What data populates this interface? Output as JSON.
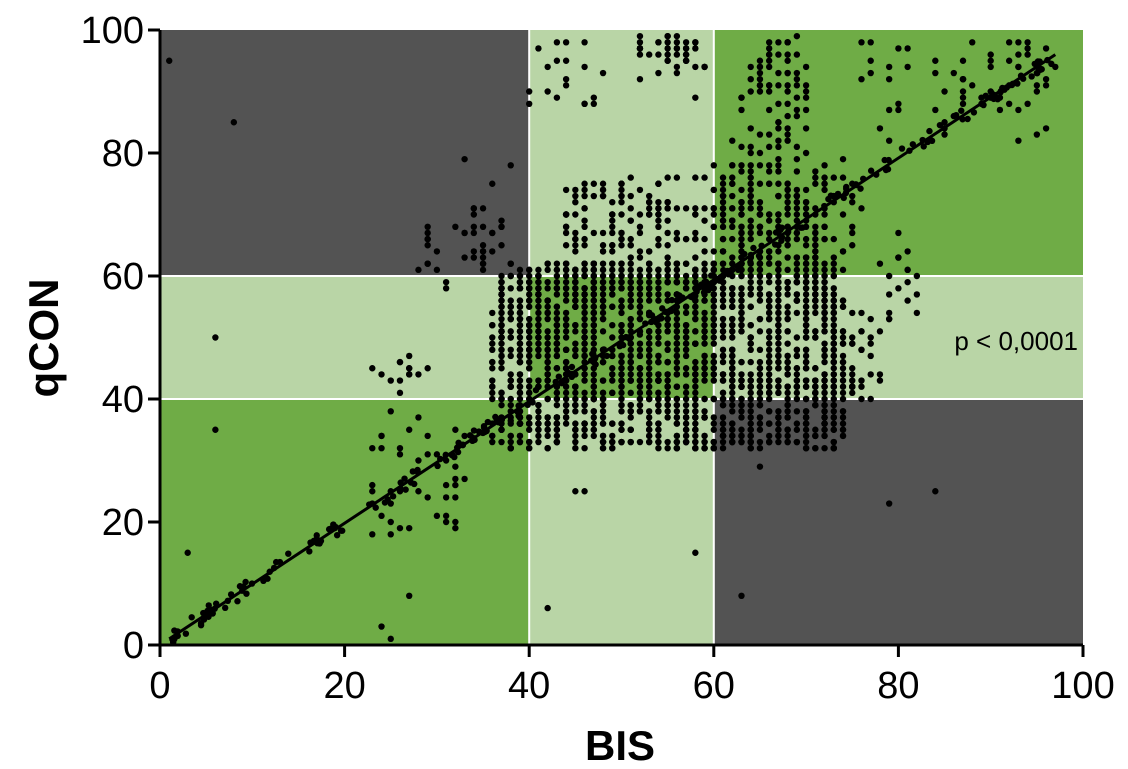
{
  "chart_data": {
    "type": "scatter",
    "xlabel": "BIS",
    "ylabel": "qCON",
    "xlim": [
      0,
      100
    ],
    "ylim": [
      0,
      100
    ],
    "x_ticks": [
      "0",
      "20",
      "40",
      "60",
      "80",
      "100"
    ],
    "y_ticks": [
      "0",
      "20",
      "40",
      "60",
      "80",
      "100"
    ],
    "annotation": "p < 0,0001",
    "grid": false,
    "colors": {
      "agreement_zone": "#6fac46",
      "partial_zone": "#b9d5a6",
      "disagreement_zone": "#535353",
      "points": "#000000",
      "regression_line": "#000000"
    },
    "background_zones": [
      {
        "x": [
          0,
          40
        ],
        "y": [
          0,
          40
        ],
        "zone": "agreement"
      },
      {
        "x": [
          40,
          60
        ],
        "y": [
          40,
          60
        ],
        "zone": "agreement"
      },
      {
        "x": [
          60,
          100
        ],
        "y": [
          60,
          100
        ],
        "zone": "agreement"
      },
      {
        "x": [
          0,
          40
        ],
        "y": [
          40,
          60
        ],
        "zone": "partial"
      },
      {
        "x": [
          40,
          60
        ],
        "y": [
          0,
          40
        ],
        "zone": "partial"
      },
      {
        "x": [
          40,
          60
        ],
        "y": [
          60,
          100
        ],
        "zone": "partial"
      },
      {
        "x": [
          60,
          100
        ],
        "y": [
          40,
          60
        ],
        "zone": "partial"
      },
      {
        "x": [
          0,
          40
        ],
        "y": [
          60,
          100
        ],
        "zone": "disagreement"
      },
      {
        "x": [
          60,
          100
        ],
        "y": [
          0,
          40
        ],
        "zone": "disagreement"
      }
    ],
    "regression_line": {
      "x": [
        1,
        97
      ],
      "y": [
        1,
        96
      ]
    },
    "scatter_outliers": [
      [
        1,
        95
      ],
      [
        3,
        15
      ],
      [
        6,
        50
      ],
      [
        6,
        35
      ],
      [
        8,
        85
      ],
      [
        24,
        3
      ],
      [
        25,
        1
      ],
      [
        27,
        8
      ],
      [
        42,
        6
      ],
      [
        58,
        15
      ],
      [
        63,
        8
      ],
      [
        65,
        29
      ],
      [
        79,
        23
      ],
      [
        84,
        25
      ],
      [
        45,
        25
      ],
      [
        46,
        25
      ],
      [
        62,
        82
      ],
      [
        58,
        89
      ],
      [
        40,
        90
      ],
      [
        93,
        82
      ],
      [
        95,
        83
      ],
      [
        96,
        84
      ],
      [
        93,
        87
      ],
      [
        62,
        34
      ],
      [
        63,
        34
      ]
    ],
    "scatter_clusters": [
      {
        "x": [
          36,
          74
        ],
        "y": [
          32,
          62
        ],
        "n": 1800
      },
      {
        "x": [
          44,
          72
        ],
        "y": [
          58,
          76
        ],
        "n": 330
      },
      {
        "x": [
          60,
          76
        ],
        "y": [
          62,
          80
        ],
        "n": 110
      },
      {
        "x": [
          63,
          70
        ],
        "y": [
          80,
          99
        ],
        "n": 70
      },
      {
        "x": [
          23,
          33
        ],
        "y": [
          18,
          36
        ],
        "n": 40
      },
      {
        "x": [
          23,
          30
        ],
        "y": [
          37,
          47
        ],
        "n": 16
      },
      {
        "x": [
          28,
          36
        ],
        "y": [
          58,
          68
        ],
        "n": 22
      },
      {
        "x": [
          33,
          38
        ],
        "y": [
          62,
          79
        ],
        "n": 20
      },
      {
        "x": [
          40,
          48
        ],
        "y": [
          87,
          99
        ],
        "n": 18
      },
      {
        "x": [
          52,
          57
        ],
        "y": [
          92,
          99
        ],
        "n": 30
      },
      {
        "x": [
          72,
          78
        ],
        "y": [
          40,
          55
        ],
        "n": 45
      },
      {
        "x": [
          78,
          82
        ],
        "y": [
          52,
          67
        ],
        "n": 18
      },
      {
        "x": [
          76,
          87
        ],
        "y": [
          82,
          98
        ],
        "n": 24
      },
      {
        "x": [
          87,
          97
        ],
        "y": [
          86,
          98
        ],
        "n": 38
      },
      {
        "x": [
          56,
          60
        ],
        "y": [
          94,
          99
        ],
        "n": 12
      }
    ],
    "scatter_diagonal_band": {
      "x": [
        1,
        97
      ],
      "jitter": 1.2,
      "n": 240
    }
  }
}
